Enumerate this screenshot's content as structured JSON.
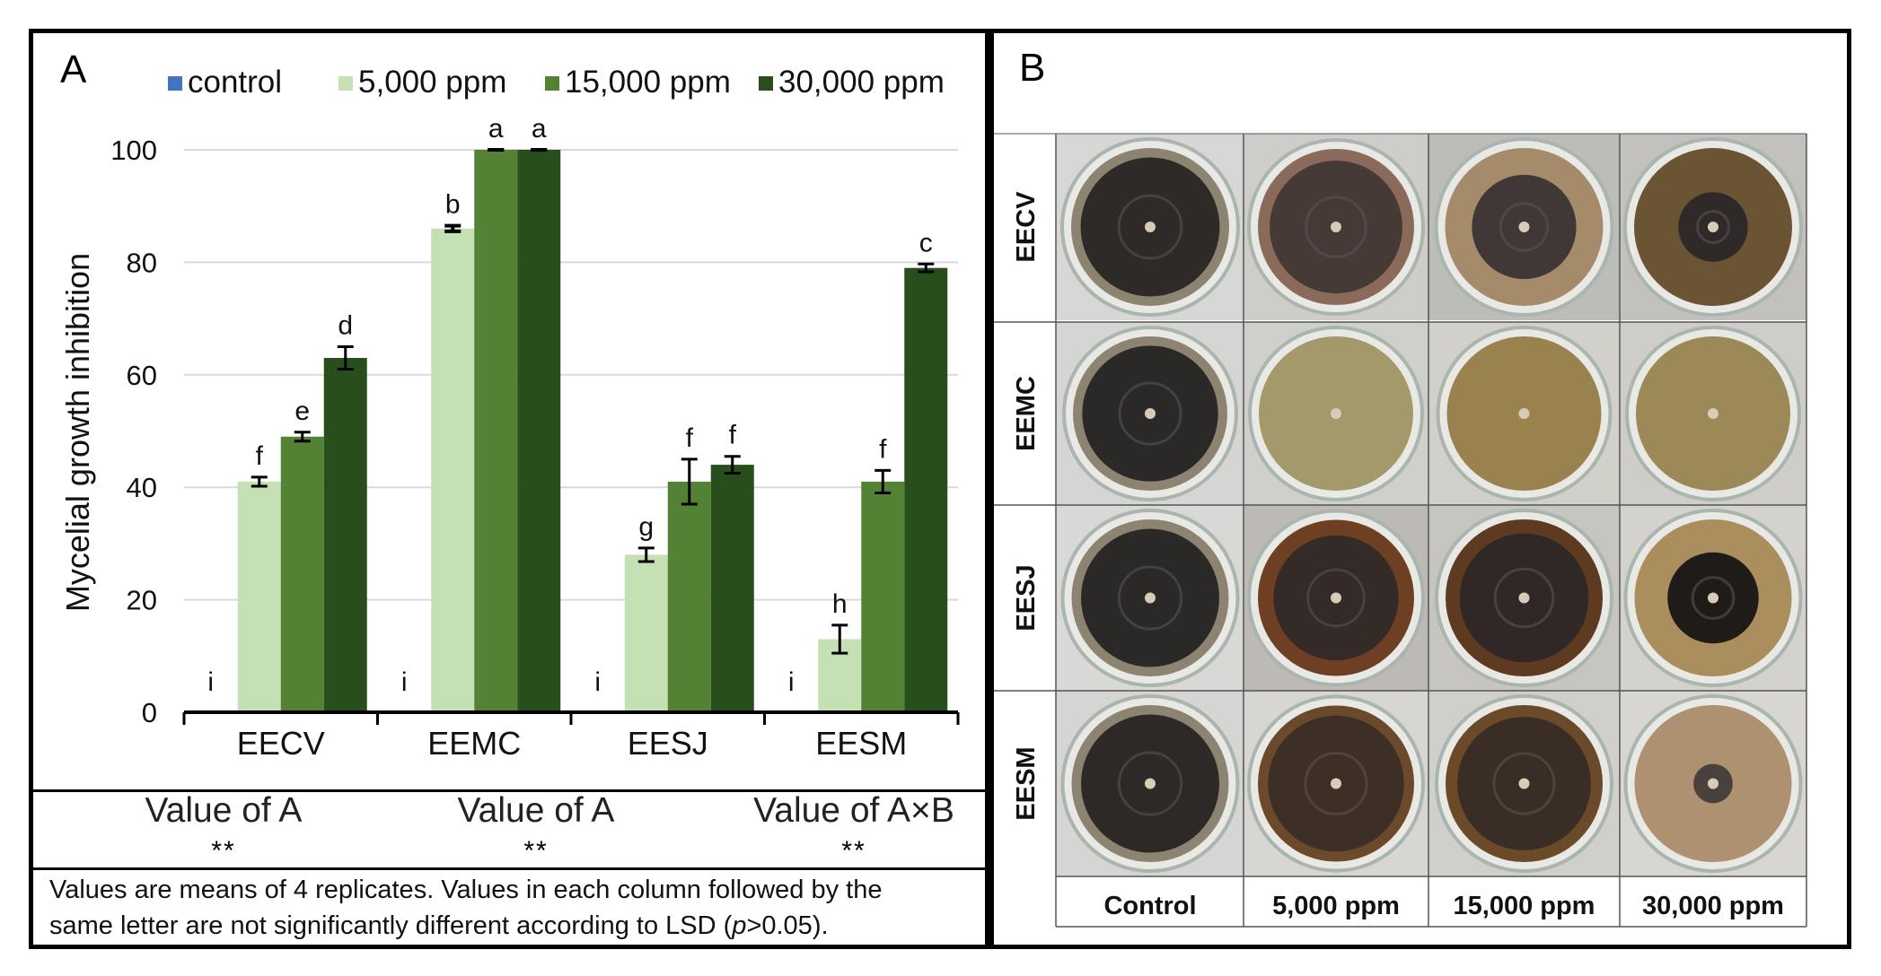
{
  "panelA": {
    "letter": "A",
    "stats": [
      {
        "label": "Value of A",
        "sig": "**"
      },
      {
        "label": "Value of A",
        "sig": "**"
      },
      {
        "label": "Value of A×B",
        "sig": "**"
      }
    ],
    "footnote_line1": "Values are means of 4 replicates. Values in each column followed by the",
    "footnote_line2_pre": "same letter are not significantly different according to LSD (",
    "footnote_p": "p",
    "footnote_line2_post": ">0.05)."
  },
  "panelB": {
    "letter": "B",
    "rows": [
      "EECV",
      "EEMC",
      "EESJ",
      "EESM"
    ],
    "columns": [
      "Control",
      "5,000 ppm",
      "15,000 ppm",
      "30,000 ppm"
    ]
  },
  "colors": {
    "control": "#4472c4",
    "ppm5000": "#c5e0b4",
    "ppm15000": "#548235",
    "ppm30000": "#274e1b",
    "grid": "#d9d9d9"
  },
  "chart_data": {
    "type": "bar",
    "ylabel": "Mycelial growth inhibition",
    "xlabel": "",
    "ylim": [
      0,
      100
    ],
    "yticks": [
      "0",
      "20",
      "40",
      "60",
      "80",
      "100"
    ],
    "categories": [
      "EECV",
      "EEMC",
      "EESJ",
      "EESM"
    ],
    "legend_position": "top",
    "series": [
      {
        "name": "control",
        "values": [
          0,
          0,
          0,
          0
        ],
        "errors": [
          0,
          0,
          0,
          0
        ],
        "letters": [
          "i",
          "i",
          "i",
          "i"
        ]
      },
      {
        "name": "5,000 ppm",
        "values": [
          41,
          86,
          28,
          13
        ],
        "errors": [
          0.8,
          0.5,
          1.2,
          2.5
        ],
        "letters": [
          "f",
          "b",
          "g",
          "h"
        ]
      },
      {
        "name": "15,000 ppm",
        "values": [
          49,
          100,
          41,
          41
        ],
        "errors": [
          0.8,
          0,
          4,
          2
        ],
        "letters": [
          "e",
          "a",
          "f",
          "f"
        ]
      },
      {
        "name": "30,000 ppm",
        "values": [
          63,
          100,
          44,
          79
        ],
        "errors": [
          2,
          0,
          1.5,
          0.7
        ],
        "letters": [
          "d",
          "a",
          "f",
          "c"
        ]
      }
    ]
  }
}
